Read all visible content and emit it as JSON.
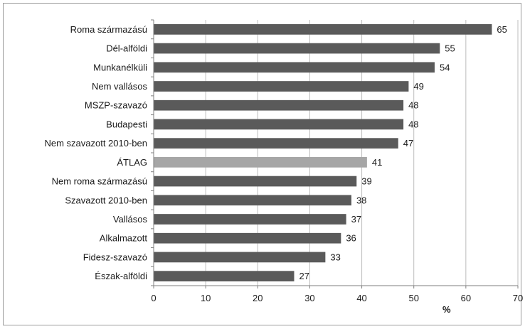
{
  "chart_data": {
    "type": "bar",
    "orientation": "horizontal",
    "categories": [
      "Roma származású",
      "Dél-alföldi",
      "Munkanélküli",
      "Nem vallásos",
      "MSZP-szavazó",
      "Budapesti",
      "Nem szavazott 2010-ben",
      "ÁTLAG",
      "Nem roma származású",
      "Szavazott 2010-ben",
      "Vallásos",
      "Alkalmazott",
      "Fidesz-szavazó",
      "Észak-alföldi"
    ],
    "values": [
      65,
      55,
      54,
      49,
      48,
      48,
      47,
      41,
      39,
      38,
      37,
      36,
      33,
      27
    ],
    "xlabel": "%",
    "xlim": [
      0,
      70
    ],
    "xticks": [
      0,
      10,
      20,
      30,
      40,
      50,
      60,
      70
    ],
    "grid": "vertical",
    "colors": {
      "bar": "#5a5a5a",
      "highlight_bar": "#a6a6a6",
      "grid": "#bdbdbd",
      "axis": "#7f7f7f"
    },
    "highlight_category": "ÁTLAG"
  }
}
